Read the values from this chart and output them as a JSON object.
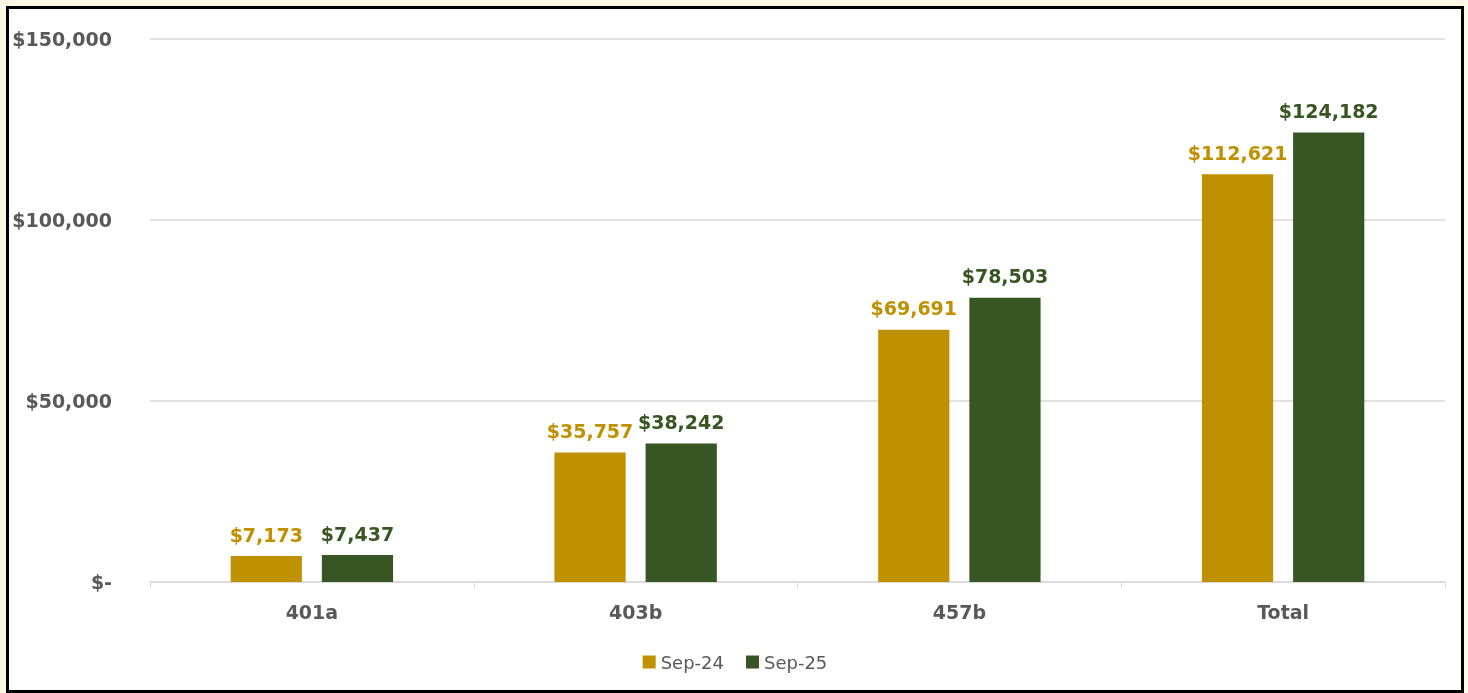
{
  "chart_data": {
    "type": "bar",
    "categories": [
      "401a",
      "403b",
      "457b",
      "Total"
    ],
    "series": [
      {
        "name": "Sep-24",
        "color": "#bf9000",
        "values": [
          7173,
          35757,
          69691,
          112621
        ],
        "value_labels": [
          "$7,173",
          "$35,757",
          "$69,691",
          "$112,621"
        ]
      },
      {
        "name": "Sep-25",
        "color": "#375623",
        "values": [
          7437,
          38242,
          78503,
          124182
        ],
        "value_labels": [
          "$7,437",
          "$38,242",
          "$78,503",
          "$124,182"
        ]
      }
    ],
    "ylim": [
      0,
      150000
    ],
    "yticks": [
      {
        "value": 0,
        "label": "$-"
      },
      {
        "value": 50000,
        "label": "$50,000"
      },
      {
        "value": 100000,
        "label": "$100,000"
      },
      {
        "value": 150000,
        "label": "$150,000"
      }
    ],
    "grid": "y",
    "legend": "bottom"
  }
}
